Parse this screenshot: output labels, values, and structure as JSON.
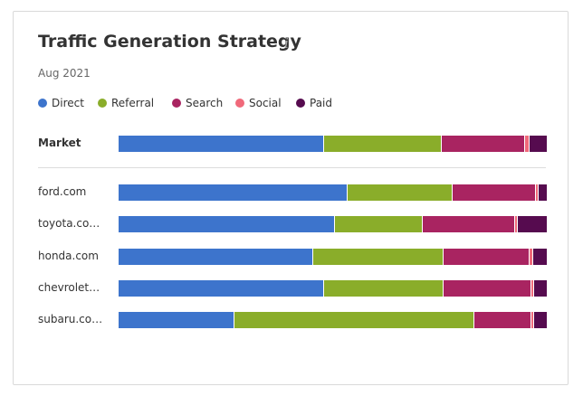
{
  "title": "Traffic Generation Strategy",
  "info_icon": "info-icon",
  "subtitle": "Aug 2021",
  "colors": {
    "Direct": "#3d74cc",
    "Referral": "#8aad2a",
    "Search": "#a92461",
    "Social": "#f0697a",
    "Paid": "#560b4f"
  },
  "legend": [
    {
      "name": "Direct",
      "label": "Direct"
    },
    {
      "name": "Referral",
      "label": "Referral"
    },
    {
      "name": "Search",
      "label": "Search"
    },
    {
      "name": "Social",
      "label": "Social"
    },
    {
      "name": "Paid",
      "label": "Paid"
    }
  ],
  "chart_data": {
    "type": "bar",
    "orientation": "horizontal",
    "stacked": true,
    "normalized": "100%",
    "categories": [
      "Market",
      "ford.com",
      "toyota.co…",
      "honda.com",
      "chevrolet…",
      "subaru.co…"
    ],
    "series": [
      {
        "name": "Direct",
        "values": [
          48.0,
          53.5,
          50.5,
          45.5,
          48.0,
          27.0
        ]
      },
      {
        "name": "Referral",
        "values": [
          27.5,
          24.5,
          20.5,
          30.5,
          28.0,
          56.0
        ]
      },
      {
        "name": "Search",
        "values": [
          19.5,
          19.5,
          21.5,
          20.0,
          20.5,
          13.5
        ]
      },
      {
        "name": "Social",
        "values": [
          1.0,
          0.5,
          0.8,
          0.8,
          0.5,
          0.5
        ]
      },
      {
        "name": "Paid",
        "values": [
          4.0,
          2.0,
          6.7,
          3.2,
          3.0,
          3.0
        ]
      }
    ],
    "legend_position": "top-left",
    "grid": false
  }
}
